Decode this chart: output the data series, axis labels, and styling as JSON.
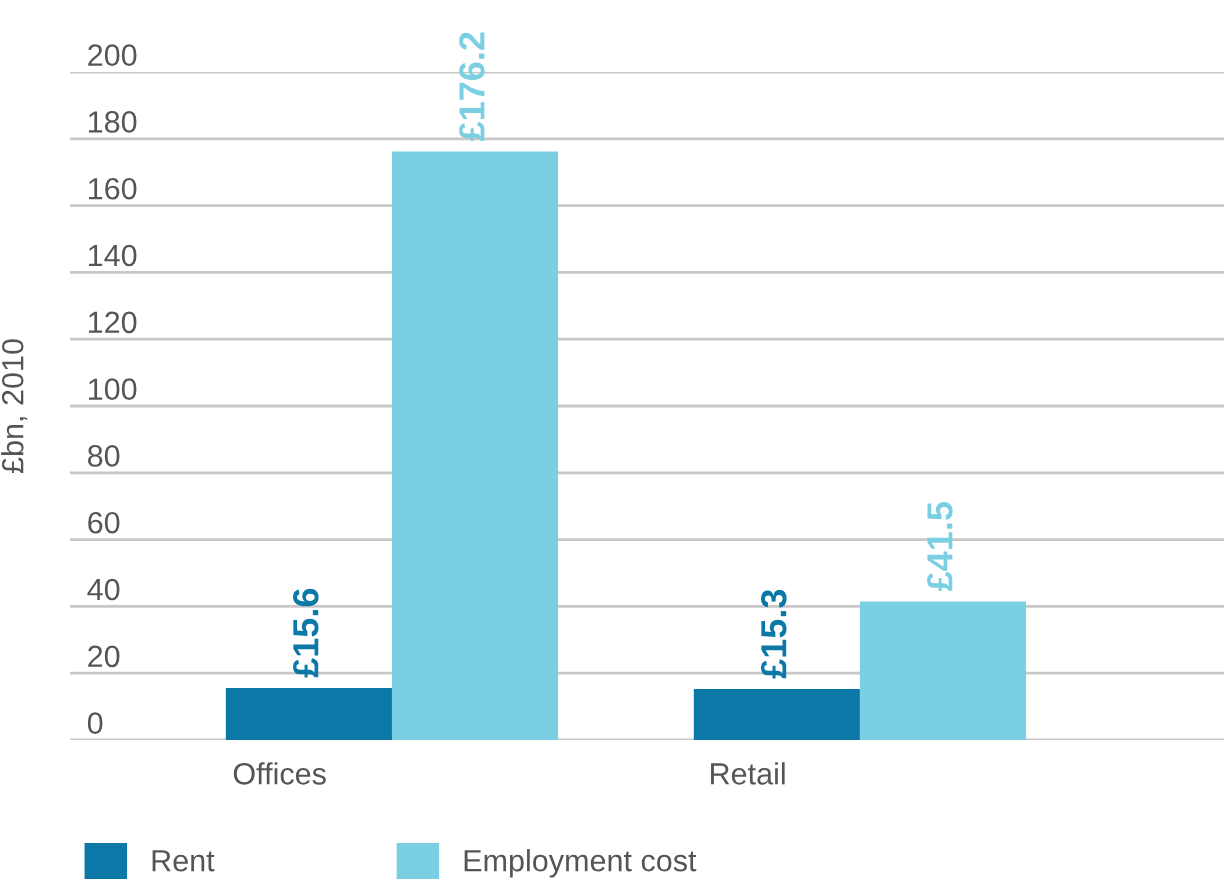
{
  "chart_data": {
    "type": "bar",
    "ylabel": "£bn, 2010",
    "categories": [
      "Offices",
      "Retail"
    ],
    "series": [
      {
        "name": "Rent",
        "color": "#0b78a8",
        "values": [
          15.6,
          15.3
        ],
        "value_labels": [
          "£15.6",
          "£15.3"
        ]
      },
      {
        "name": "Employment cost",
        "color": "#7acfe2",
        "values": [
          176.2,
          41.5
        ],
        "value_labels": [
          "£176.2",
          "£41.5"
        ]
      }
    ],
    "ylim": [
      0,
      200
    ],
    "yticks": [
      0,
      20,
      40,
      60,
      80,
      100,
      120,
      140,
      160,
      180,
      200
    ],
    "grid": "y",
    "legend": "bottom left"
  }
}
